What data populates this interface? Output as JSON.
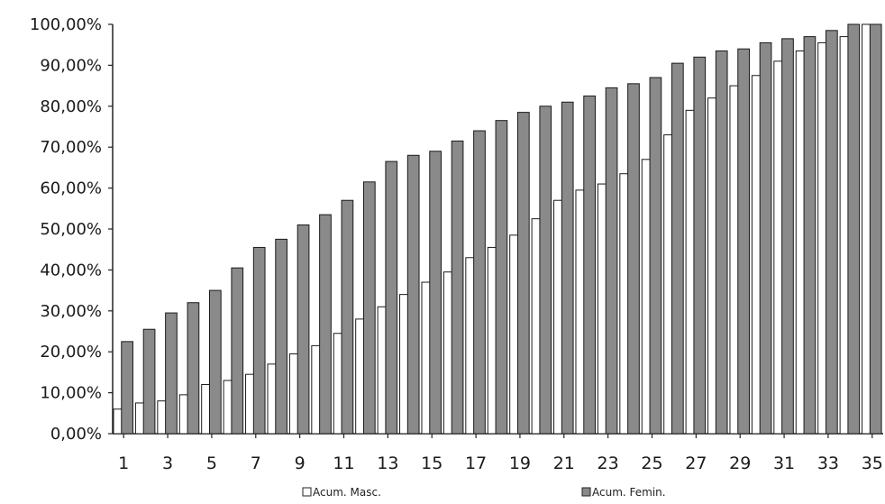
{
  "chart_data": {
    "type": "bar",
    "categories": [
      "1",
      "2",
      "3",
      "4",
      "5",
      "6",
      "7",
      "8",
      "9",
      "10",
      "11",
      "12",
      "13",
      "14",
      "15",
      "16",
      "17",
      "18",
      "19",
      "20",
      "21",
      "22",
      "23",
      "24",
      "25",
      "26",
      "27",
      "28",
      "29",
      "30",
      "31",
      "32",
      "33",
      "34",
      "35"
    ],
    "series": [
      {
        "name": "Acum. Masc.",
        "fill": "#ffffff",
        "values": [
          6.0,
          7.5,
          8.0,
          9.5,
          12.0,
          13.0,
          14.5,
          17.0,
          19.5,
          21.5,
          24.5,
          28.0,
          31.0,
          34.0,
          37.0,
          39.5,
          43.0,
          45.5,
          48.5,
          52.5,
          57.0,
          59.5,
          61.0,
          63.5,
          67.0,
          73.0,
          79.0,
          82.0,
          85.0,
          87.5,
          91.0,
          93.5,
          95.5,
          97.0,
          100.0
        ]
      },
      {
        "name": "Acum. Femin.",
        "fill": "#8a8a8a",
        "values": [
          22.5,
          25.5,
          29.5,
          32.0,
          35.0,
          40.5,
          45.5,
          47.5,
          51.0,
          53.5,
          57.0,
          61.5,
          66.5,
          68.0,
          69.0,
          71.5,
          74.0,
          76.5,
          78.5,
          80.0,
          81.0,
          82.5,
          84.5,
          85.5,
          87.0,
          90.5,
          92.0,
          93.5,
          94.0,
          95.5,
          96.5,
          97.0,
          98.5,
          100.0,
          100.0
        ]
      }
    ],
    "x_tick_labels": [
      "1",
      "3",
      "5",
      "7",
      "9",
      "11",
      "13",
      "15",
      "17",
      "19",
      "21",
      "23",
      "25",
      "27",
      "29",
      "31",
      "33",
      "35"
    ],
    "y_tick_labels": [
      "0,00%",
      "10,00%",
      "20,00%",
      "30,00%",
      "40,00%",
      "50,00%",
      "60,00%",
      "70,00%",
      "80,00%",
      "90,00%",
      "100,00%"
    ],
    "ylim": [
      0,
      100
    ],
    "grid": false,
    "legend_position": "bottom",
    "title": "",
    "xlabel": "",
    "ylabel": ""
  }
}
